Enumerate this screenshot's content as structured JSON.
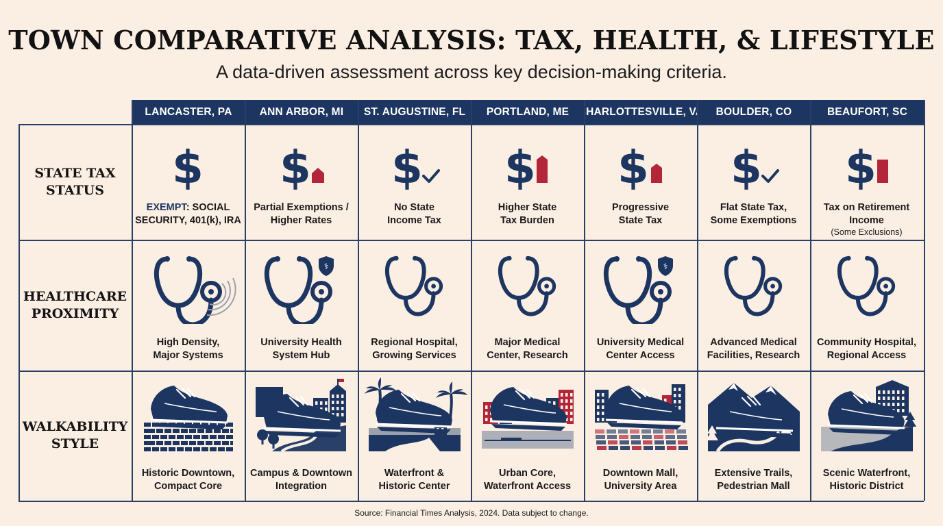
{
  "title": "TOWN COMPARATIVE ANALYSIS: TAX, HEALTH, & LIFESTYLE",
  "subtitle": "A data-driven assessment across key decision-making criteria.",
  "towns": [
    "LANCASTER, PA",
    "ANN ARBOR, MI",
    "ST. AUGUSTINE, FL",
    "PORTLAND, ME",
    "CHARLOTTESVILLE, VA",
    "BOULDER, CO",
    "BEAUFORT, SC"
  ],
  "rows": {
    "tax": {
      "label_line1": "STATE TAX",
      "label_line2": "STATUS",
      "cells": [
        {
          "icon": "dollar-icon",
          "emph": "EXEMPT",
          "line1": ": SOCIAL",
          "line2": "SECURITY, 401(k), IRA"
        },
        {
          "icon": "dollar-small-bar-icon",
          "line1": "Partial Exemptions /",
          "line2": "Higher Rates"
        },
        {
          "icon": "dollar-check-icon",
          "line1": "No State",
          "line2": "Income Tax"
        },
        {
          "icon": "dollar-tall-bar-icon",
          "line1": "Higher State",
          "line2": "Tax Burden"
        },
        {
          "icon": "dollar-medium-bar-icon",
          "line1": "Progressive",
          "line2": "State Tax"
        },
        {
          "icon": "dollar-check-icon",
          "line1": "Flat State Tax,",
          "line2": "Some Exemptions"
        },
        {
          "icon": "dollar-bar-icon",
          "line1": "Tax on Retirement",
          "line2": "Income",
          "note": "(Some Exclusions)"
        }
      ]
    },
    "health": {
      "label_line1": "HEALTHCARE",
      "label_line2": "PROXIMITY",
      "cells": [
        {
          "icon": "stethoscope-signal-icon",
          "line1": "High Density,",
          "line2": "Major Systems"
        },
        {
          "icon": "stethoscope-shield-icon",
          "line1": "University Health",
          "line2": "System Hub"
        },
        {
          "icon": "stethoscope-icon",
          "line1": "Regional Hospital,",
          "line2": "Growing Services"
        },
        {
          "icon": "stethoscope-icon",
          "line1": "Major Medical",
          "line2": "Center, Research"
        },
        {
          "icon": "stethoscope-shield-icon",
          "line1": "University Medical",
          "line2": "Center Access"
        },
        {
          "icon": "stethoscope-icon",
          "line1": "Advanced Medical",
          "line2": "Facilities, Research"
        },
        {
          "icon": "stethoscope-icon",
          "line1": "Community Hospital,",
          "line2": "Regional Access"
        }
      ]
    },
    "walk": {
      "label_line1": "WALKABILITY",
      "label_line2": "STYLE",
      "cells": [
        {
          "icon": "shoe-cobblestone-icon",
          "line1": "Historic Downtown,",
          "line2": "Compact Core"
        },
        {
          "icon": "shoe-campus-icon",
          "line1": "Campus & Downtown",
          "line2": "Integration"
        },
        {
          "icon": "shoe-palm-waterfront-icon",
          "line1": "Waterfront &",
          "line2": "Historic Center"
        },
        {
          "icon": "shoe-urban-waterfront-icon",
          "line1": "Urban Core,",
          "line2": "Waterfront Access"
        },
        {
          "icon": "shoe-downtown-mall-icon",
          "line1": "Downtown Mall,",
          "line2": "University Area"
        },
        {
          "icon": "shoe-mountain-trail-icon",
          "line1": "Extensive Trails,",
          "line2": "Pedestrian Mall"
        },
        {
          "icon": "shoe-scenic-waterfront-icon",
          "line1": "Scenic Waterfront,",
          "line2": "Historic District"
        }
      ]
    }
  },
  "colors": {
    "navy": "#1d3661",
    "crimson": "#b3263a",
    "background": "#fbeee3",
    "gray": "#9aa1ab"
  },
  "source": "Source: Financial Times Analysis, 2024. Data subject to change."
}
